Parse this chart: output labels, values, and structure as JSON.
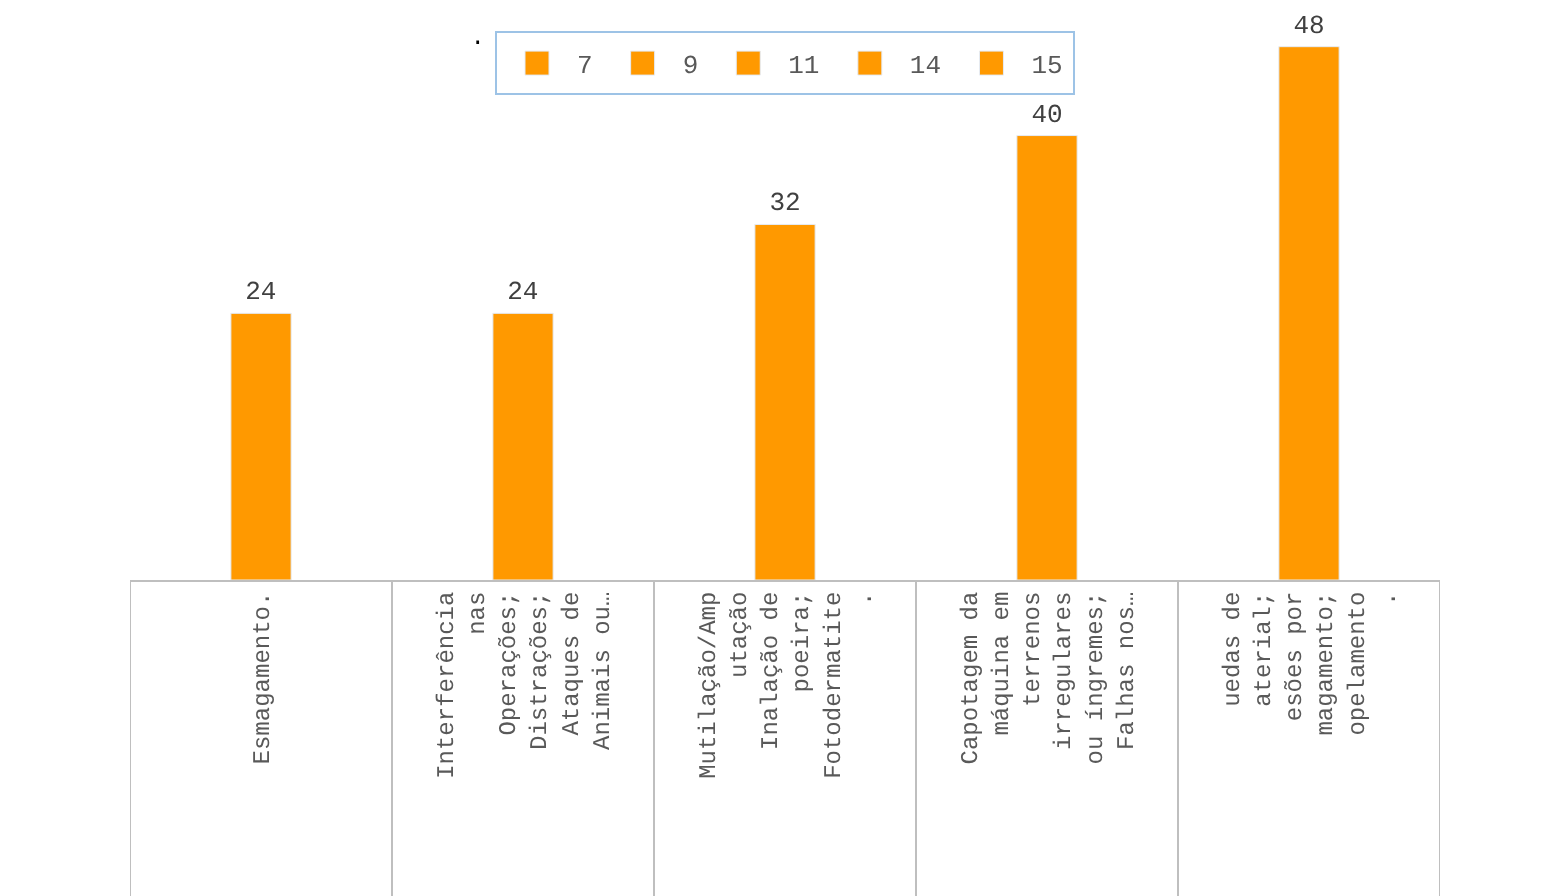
{
  "chart_data": {
    "type": "bar",
    "title": ".",
    "categories": [
      "Esmagamento.",
      "Interferência\nnas\nOperações;\nDistrações;\nAtaques de\nAnimais ou…",
      "Mutilação/Amp\nutação\nInalação de\npoeira;\nFotodermatite\n.",
      "Capotagem da\nmáquina em\nterrenos\nirregulares\nou íngremes;\nFalhas nos…",
      "uedas de\naterial;\nesões por\nmagamento;\nopelamento\n."
    ],
    "series": [
      {
        "name": "7",
        "color": "#ff9900",
        "values": [
          24,
          null,
          null,
          null,
          null
        ]
      },
      {
        "name": "9",
        "color": "#ff9900",
        "values": [
          null,
          24,
          null,
          null,
          null
        ]
      },
      {
        "name": "11",
        "color": "#ff9900",
        "values": [
          null,
          null,
          32,
          null,
          null
        ]
      },
      {
        "name": "14",
        "color": "#ff9900",
        "values": [
          null,
          null,
          null,
          40,
          null
        ]
      },
      {
        "name": "15",
        "color": "#ff9900",
        "values": [
          null,
          null,
          null,
          null,
          48
        ]
      }
    ],
    "data_labels": true,
    "legend": "top"
  }
}
